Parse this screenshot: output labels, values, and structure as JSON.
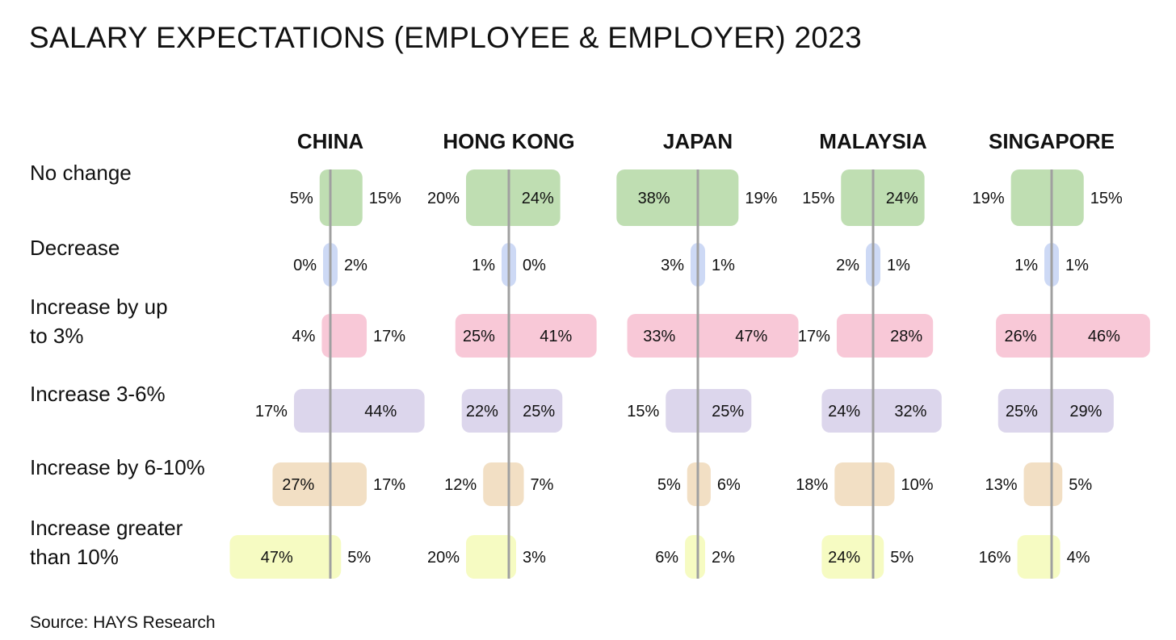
{
  "chart_data": {
    "type": "bar",
    "subtype": "diverging-horizontal-bar",
    "title": "SALARY EXPECTATIONS (EMPLOYEE & EMPLOYER) 2023",
    "source": "Source: HAYS Research",
    "categories": [
      "No change",
      "Decrease",
      "Increase by up to 3%",
      "Increase 3-6%",
      "Increase by 6-10%",
      "Increase greater than 10%"
    ],
    "category_lines": [
      [
        "No change"
      ],
      [
        "Decrease"
      ],
      [
        "Increase by up",
        "to 3%"
      ],
      [
        "Increase 3-6%"
      ],
      [
        "Increase by 6-10%"
      ],
      [
        "Increase greater",
        "than 10%"
      ]
    ],
    "colors": [
      "#bfdeb2",
      "#cdd9f5",
      "#f8c8d7",
      "#dcd6ec",
      "#f2dfc4",
      "#f6fbc2"
    ],
    "axis_color": "#a0a0a0",
    "unit": "%",
    "countries": [
      {
        "name": "CHINA",
        "left": [
          5,
          0,
          4,
          17,
          27,
          47
        ],
        "right": [
          15,
          2,
          17,
          44,
          17,
          5
        ]
      },
      {
        "name": "HONG KONG",
        "left": [
          20,
          1,
          25,
          22,
          12,
          20
        ],
        "right": [
          24,
          0,
          41,
          25,
          7,
          3
        ]
      },
      {
        "name": "JAPAN",
        "left": [
          38,
          3,
          33,
          15,
          5,
          6
        ],
        "right": [
          19,
          1,
          47,
          25,
          6,
          2
        ]
      },
      {
        "name": "MALAYSIA",
        "left": [
          15,
          2,
          17,
          24,
          18,
          24
        ],
        "right": [
          24,
          1,
          28,
          32,
          10,
          5
        ]
      },
      {
        "name": "SINGAPORE",
        "left": [
          19,
          1,
          26,
          25,
          13,
          16
        ],
        "right": [
          15,
          1,
          46,
          29,
          5,
          4
        ]
      }
    ]
  }
}
